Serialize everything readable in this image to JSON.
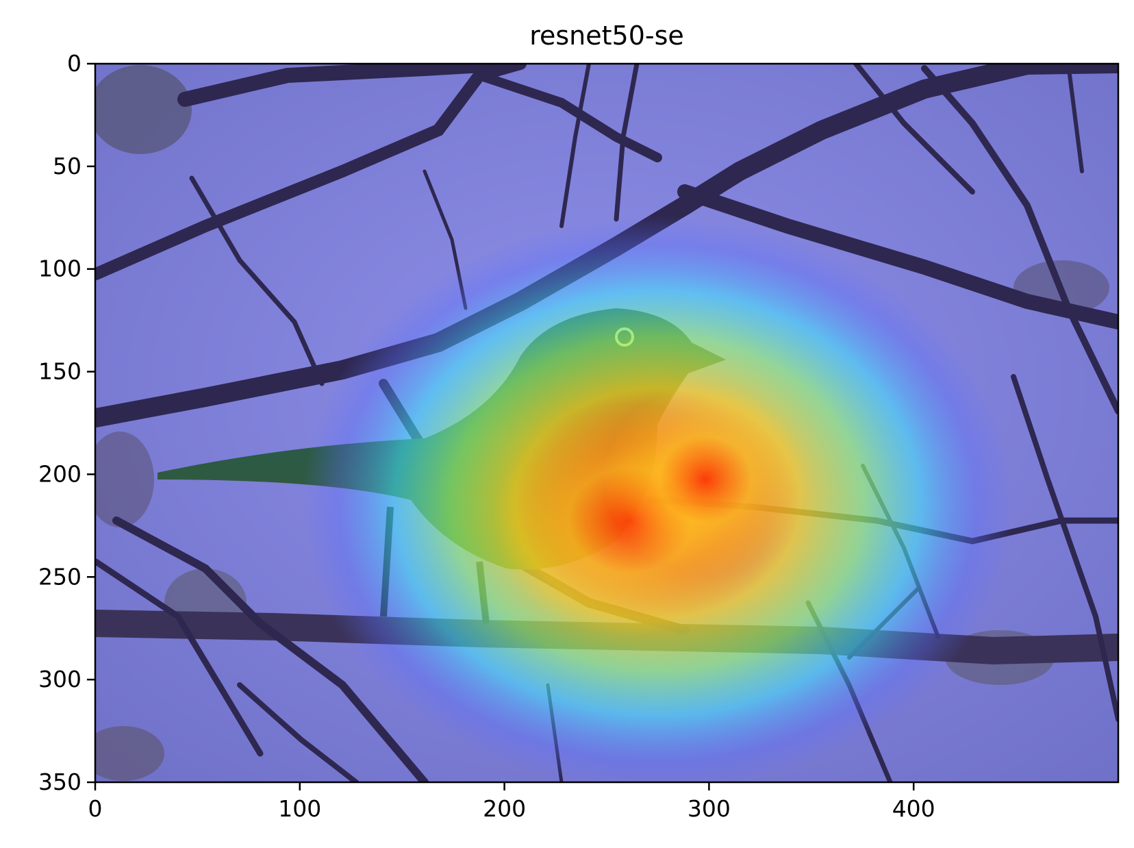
{
  "figure": {
    "title": "resnet50-se"
  },
  "axes": {
    "x_ticks": [
      0,
      100,
      200,
      300,
      400
    ],
    "y_ticks": [
      0,
      50,
      100,
      150,
      200,
      250,
      300,
      350
    ],
    "xlim": [
      0,
      500
    ],
    "ylim": [
      350,
      0
    ]
  },
  "image": {
    "subject": "bird perched on tree branches",
    "overlay": "jet-colormap activation heatmap",
    "hotspot_center": [
      280,
      225
    ],
    "colors": {
      "sky": "#7d80dc",
      "branch": "#2e2750",
      "bird_dark": "#1f3a4a",
      "heat_red": "#ff2000",
      "heat_yellow": "#ffe800",
      "heat_cyan": "#40f0ff"
    }
  }
}
